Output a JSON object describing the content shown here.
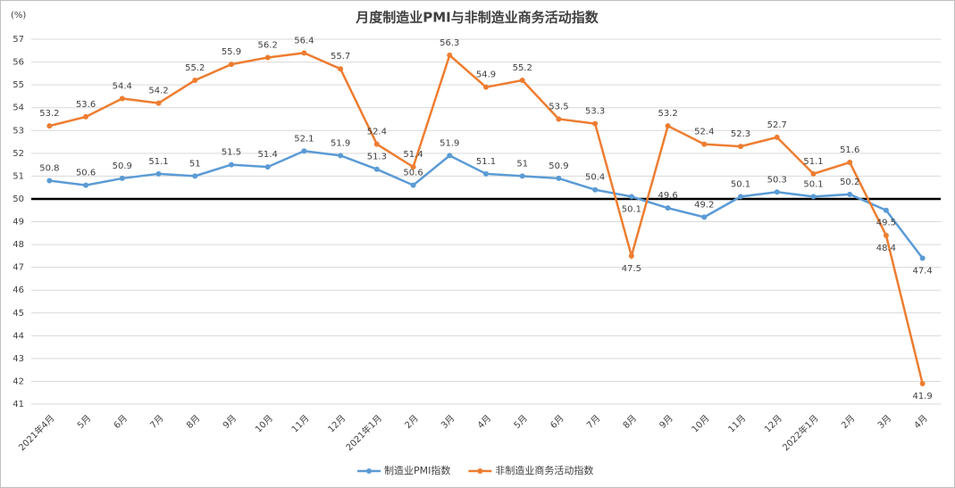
{
  "chart_data": {
    "type": "line",
    "title": "月度制造业PMI与非制造业商务活动指数",
    "y_unit": "(%)",
    "categories": [
      "2021年4月",
      "5月",
      "6月",
      "7月",
      "8月",
      "9月",
      "10月",
      "11月",
      "12月",
      "2021年1月",
      "2月",
      "3月",
      "4月",
      "5月",
      "6月",
      "7月",
      "8月",
      "9月",
      "10月",
      "11月",
      "12月",
      "2022年1月",
      "2月",
      "3月",
      "4月"
    ],
    "series": [
      {
        "name": "制造业PMI指数",
        "color": "#5b9bd5",
        "values": [
          50.8,
          50.6,
          50.9,
          51.1,
          51,
          51.5,
          51.4,
          52.1,
          51.9,
          51.3,
          50.6,
          51.9,
          51.1,
          51,
          50.9,
          50.4,
          50.1,
          49.6,
          49.2,
          50.1,
          50.3,
          50.1,
          50.2,
          49.5,
          47.4
        ]
      },
      {
        "name": "非制造业商务活动指数",
        "color": "#ed7d31",
        "values": [
          53.2,
          53.6,
          54.4,
          54.2,
          55.2,
          55.9,
          56.2,
          56.4,
          55.7,
          52.4,
          51.4,
          56.3,
          54.9,
          55.2,
          53.5,
          53.3,
          47.5,
          53.2,
          52.4,
          52.3,
          52.7,
          51.1,
          51.6,
          48.4,
          41.9
        ]
      }
    ],
    "ylim": [
      41,
      57
    ],
    "yticks": [
      41,
      42,
      43,
      44,
      45,
      46,
      47,
      48,
      49,
      50,
      51,
      52,
      53,
      54,
      55,
      56,
      57
    ],
    "reference_line": 50,
    "grid": true,
    "legend": "bottom"
  }
}
